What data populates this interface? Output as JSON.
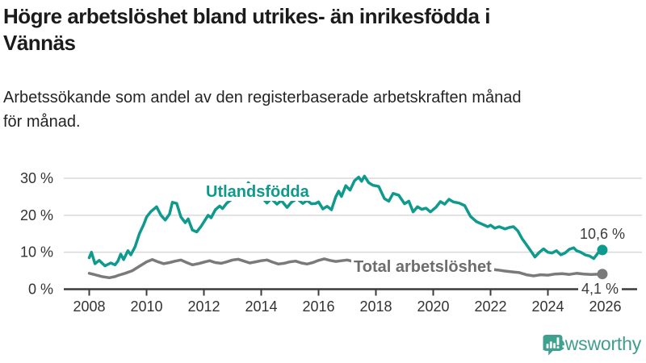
{
  "header": {
    "title_lines": [
      "Högre arbetslöshet bland utrikes- än inrikesfödda i",
      "Vännäs"
    ],
    "subtitle_lines": [
      "Arbetssökande som andel av den registerbaserade arbetskraften månad",
      "för månad."
    ]
  },
  "chart_data": {
    "type": "line",
    "title": "Högre arbetslöshet bland utrikes- än inrikesfödda i Vännäs",
    "subtitle": "Arbetssökande som andel av den registerbaserade arbetskraften månad för månad.",
    "xlabel": "",
    "ylabel": "",
    "ylim": [
      0,
      33
    ],
    "xlim": [
      2007.3,
      2027.3
    ],
    "grid": "horizontal",
    "legend_position": "inline-labels",
    "x_ticks": [
      2008,
      2010,
      2012,
      2014,
      2016,
      2018,
      2020,
      2022,
      2024,
      2026
    ],
    "y_ticks": [
      {
        "value": 0,
        "label": "0 %"
      },
      {
        "value": 10,
        "label": "10 %"
      },
      {
        "value": 20,
        "label": "20 %"
      },
      {
        "value": 30,
        "label": "30 %"
      }
    ],
    "series": [
      {
        "name": "Utlandsfödda",
        "color": "#0e9a8c",
        "end_label": "10,6 %",
        "end_value": 10.6,
        "points": [
          [
            2008.0,
            8.5
          ],
          [
            2008.08,
            10.0
          ],
          [
            2008.2,
            6.9
          ],
          [
            2008.35,
            7.8
          ],
          [
            2008.55,
            6.3
          ],
          [
            2008.75,
            7.1
          ],
          [
            2008.9,
            6.6
          ],
          [
            2009.0,
            7.6
          ],
          [
            2009.1,
            9.5
          ],
          [
            2009.2,
            8.0
          ],
          [
            2009.35,
            10.4
          ],
          [
            2009.45,
            9.3
          ],
          [
            2009.6,
            11.5
          ],
          [
            2009.75,
            15.0
          ],
          [
            2009.9,
            17.5
          ],
          [
            2010.0,
            19.5
          ],
          [
            2010.15,
            21.0
          ],
          [
            2010.35,
            22.3
          ],
          [
            2010.5,
            20.0
          ],
          [
            2010.65,
            18.7
          ],
          [
            2010.8,
            20.3
          ],
          [
            2010.9,
            23.5
          ],
          [
            2011.05,
            23.2
          ],
          [
            2011.2,
            19.5
          ],
          [
            2011.35,
            18.0
          ],
          [
            2011.45,
            19.0
          ],
          [
            2011.6,
            16.0
          ],
          [
            2011.75,
            15.5
          ],
          [
            2011.9,
            17.0
          ],
          [
            2012.0,
            18.2
          ],
          [
            2012.15,
            20.0
          ],
          [
            2012.25,
            19.3
          ],
          [
            2012.4,
            21.5
          ],
          [
            2012.55,
            22.5
          ],
          [
            2012.65,
            21.8
          ],
          [
            2012.8,
            23.3
          ],
          [
            2012.95,
            24.2
          ],
          [
            2013.1,
            25.3
          ],
          [
            2013.25,
            24.6
          ],
          [
            2013.4,
            26.5
          ],
          [
            2013.55,
            28.8
          ],
          [
            2013.7,
            27.5
          ],
          [
            2013.85,
            26.0
          ],
          [
            2014.0,
            25.0
          ],
          [
            2014.2,
            23.3
          ],
          [
            2014.35,
            24.5
          ],
          [
            2014.55,
            23.0
          ],
          [
            2014.7,
            24.0
          ],
          [
            2014.9,
            22.1
          ],
          [
            2015.05,
            23.5
          ],
          [
            2015.25,
            24.5
          ],
          [
            2015.45,
            23.2
          ],
          [
            2015.6,
            24.0
          ],
          [
            2015.75,
            23.1
          ],
          [
            2015.9,
            23.2
          ],
          [
            2016.0,
            23.6
          ],
          [
            2016.15,
            21.7
          ],
          [
            2016.3,
            22.4
          ],
          [
            2016.45,
            21.5
          ],
          [
            2016.6,
            25.0
          ],
          [
            2016.7,
            26.5
          ],
          [
            2016.8,
            25.1
          ],
          [
            2016.95,
            28.0
          ],
          [
            2017.1,
            26.8
          ],
          [
            2017.25,
            29.3
          ],
          [
            2017.4,
            30.3
          ],
          [
            2017.5,
            29.2
          ],
          [
            2017.6,
            30.6
          ],
          [
            2017.75,
            28.8
          ],
          [
            2017.9,
            28.1
          ],
          [
            2018.1,
            27.8
          ],
          [
            2018.3,
            24.5
          ],
          [
            2018.45,
            23.8
          ],
          [
            2018.6,
            25.9
          ],
          [
            2018.8,
            25.4
          ],
          [
            2019.0,
            23.1
          ],
          [
            2019.15,
            23.8
          ],
          [
            2019.3,
            20.9
          ],
          [
            2019.45,
            22.3
          ],
          [
            2019.6,
            21.6
          ],
          [
            2019.75,
            21.9
          ],
          [
            2019.9,
            20.9
          ],
          [
            2020.1,
            22.2
          ],
          [
            2020.25,
            23.7
          ],
          [
            2020.4,
            23.0
          ],
          [
            2020.55,
            24.3
          ],
          [
            2020.7,
            23.6
          ],
          [
            2020.9,
            23.3
          ],
          [
            2021.1,
            22.6
          ],
          [
            2021.3,
            19.7
          ],
          [
            2021.5,
            18.3
          ],
          [
            2021.7,
            17.6
          ],
          [
            2021.9,
            16.9
          ],
          [
            2022.0,
            17.3
          ],
          [
            2022.15,
            16.5
          ],
          [
            2022.3,
            16.9
          ],
          [
            2022.5,
            16.3
          ],
          [
            2022.65,
            16.7
          ],
          [
            2022.8,
            16.9
          ],
          [
            2022.95,
            15.8
          ],
          [
            2023.1,
            13.7
          ],
          [
            2023.2,
            12.6
          ],
          [
            2023.3,
            11.5
          ],
          [
            2023.4,
            10.4
          ],
          [
            2023.55,
            8.7
          ],
          [
            2023.7,
            10.0
          ],
          [
            2023.85,
            10.9
          ],
          [
            2024.0,
            10.0
          ],
          [
            2024.15,
            9.8
          ],
          [
            2024.3,
            10.4
          ],
          [
            2024.45,
            9.3
          ],
          [
            2024.6,
            9.8
          ],
          [
            2024.75,
            10.8
          ],
          [
            2024.9,
            11.2
          ],
          [
            2025.0,
            10.4
          ],
          [
            2025.15,
            10.0
          ],
          [
            2025.3,
            9.3
          ],
          [
            2025.45,
            9.0
          ],
          [
            2025.6,
            8.3
          ],
          [
            2025.75,
            9.8
          ],
          [
            2025.9,
            10.6
          ]
        ]
      },
      {
        "name": "Total arbetslöshet",
        "color": "#7a7a7a",
        "end_label": "4,1 %",
        "end_value": 4.1,
        "points": [
          [
            2008.0,
            4.3
          ],
          [
            2008.2,
            3.9
          ],
          [
            2008.45,
            3.4
          ],
          [
            2008.7,
            3.1
          ],
          [
            2008.9,
            3.4
          ],
          [
            2009.0,
            3.7
          ],
          [
            2009.25,
            4.3
          ],
          [
            2009.5,
            5.0
          ],
          [
            2009.75,
            6.2
          ],
          [
            2010.0,
            7.4
          ],
          [
            2010.2,
            8.0
          ],
          [
            2010.4,
            7.4
          ],
          [
            2010.6,
            6.9
          ],
          [
            2010.8,
            7.2
          ],
          [
            2011.0,
            7.6
          ],
          [
            2011.2,
            7.9
          ],
          [
            2011.4,
            7.2
          ],
          [
            2011.6,
            6.6
          ],
          [
            2011.8,
            6.9
          ],
          [
            2012.0,
            7.3
          ],
          [
            2012.2,
            7.7
          ],
          [
            2012.4,
            7.2
          ],
          [
            2012.6,
            7.0
          ],
          [
            2012.8,
            7.4
          ],
          [
            2013.0,
            7.9
          ],
          [
            2013.2,
            8.1
          ],
          [
            2013.4,
            7.6
          ],
          [
            2013.6,
            7.1
          ],
          [
            2013.8,
            7.4
          ],
          [
            2014.0,
            7.7
          ],
          [
            2014.2,
            7.9
          ],
          [
            2014.4,
            7.3
          ],
          [
            2014.6,
            6.8
          ],
          [
            2014.8,
            7.0
          ],
          [
            2015.0,
            7.4
          ],
          [
            2015.2,
            7.6
          ],
          [
            2015.4,
            7.1
          ],
          [
            2015.6,
            6.8
          ],
          [
            2015.8,
            7.2
          ],
          [
            2016.0,
            7.8
          ],
          [
            2016.2,
            8.2
          ],
          [
            2016.4,
            7.8
          ],
          [
            2016.6,
            7.5
          ],
          [
            2016.8,
            7.7
          ],
          [
            2017.0,
            7.9
          ],
          [
            2017.2,
            7.5
          ],
          [
            2017.4,
            7.0
          ],
          [
            2017.6,
            6.8
          ],
          [
            2017.8,
            7.0
          ],
          [
            2018.0,
            7.2
          ],
          [
            2018.25,
            6.9
          ],
          [
            2018.5,
            6.5
          ],
          [
            2018.75,
            6.6
          ],
          [
            2019.0,
            6.8
          ],
          [
            2019.25,
            6.5
          ],
          [
            2019.5,
            6.2
          ],
          [
            2019.75,
            6.4
          ],
          [
            2020.0,
            6.6
          ],
          [
            2020.25,
            7.0
          ],
          [
            2020.5,
            7.2
          ],
          [
            2020.75,
            6.9
          ],
          [
            2021.0,
            6.7
          ],
          [
            2021.25,
            6.3
          ],
          [
            2021.5,
            5.9
          ],
          [
            2021.75,
            5.6
          ],
          [
            2022.0,
            5.4
          ],
          [
            2022.25,
            5.2
          ],
          [
            2022.5,
            4.9
          ],
          [
            2022.75,
            4.7
          ],
          [
            2023.0,
            4.5
          ],
          [
            2023.25,
            3.9
          ],
          [
            2023.5,
            3.6
          ],
          [
            2023.75,
            3.9
          ],
          [
            2024.0,
            3.8
          ],
          [
            2024.25,
            4.1
          ],
          [
            2024.5,
            4.2
          ],
          [
            2024.75,
            4.0
          ],
          [
            2025.0,
            4.3
          ],
          [
            2025.25,
            4.1
          ],
          [
            2025.5,
            4.0
          ],
          [
            2025.9,
            4.1
          ]
        ]
      }
    ]
  },
  "footer": {
    "brand": "Newsworthy",
    "logo_color": "#40a090"
  }
}
